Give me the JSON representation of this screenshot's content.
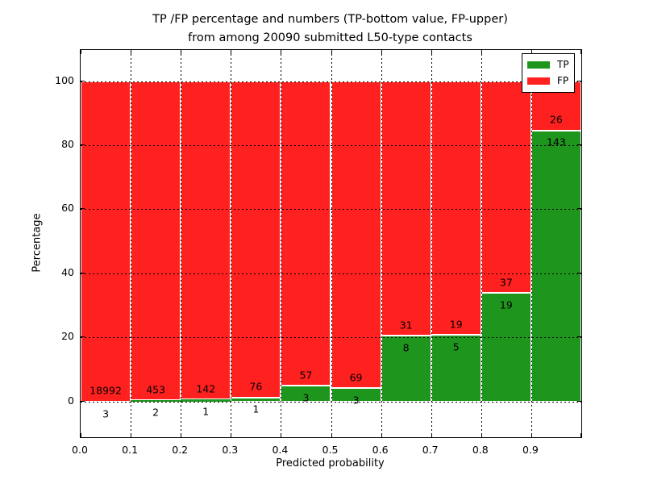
{
  "chart_data": {
    "type": "bar",
    "subtype": "stacked-percentage-histogram",
    "title_line1": "TP /FP percentage and numbers (TP-bottom value, FP-upper)",
    "title_line2": "from among 20090 submitted L50-type contacts",
    "submitted_total": 20090,
    "xlabel": "Predicted probability",
    "ylabel": "Percentage",
    "xlim": [
      0.0,
      1.0
    ],
    "ylim": [
      -11.1,
      109.7
    ],
    "xtick_values": [
      0.0,
      0.1,
      0.2,
      0.3,
      0.4,
      0.5,
      0.6,
      0.7,
      0.8,
      0.9
    ],
    "xtick_labels": [
      "0.0",
      "0.1",
      "0.2",
      "0.3",
      "0.4",
      "0.5",
      "0.6",
      "0.7",
      "0.8",
      "0.9"
    ],
    "ytick_values": [
      0,
      20,
      40,
      60,
      80,
      100
    ],
    "ytick_labels": [
      "0",
      "20",
      "40",
      "60",
      "80",
      "100"
    ],
    "grid": true,
    "bins": [
      {
        "x_start": 0.0,
        "x_end": 0.1,
        "tp": 3,
        "fp": 18992
      },
      {
        "x_start": 0.1,
        "x_end": 0.2,
        "tp": 2,
        "fp": 453
      },
      {
        "x_start": 0.2,
        "x_end": 0.3,
        "tp": 1,
        "fp": 142
      },
      {
        "x_start": 0.3,
        "x_end": 0.4,
        "tp": 1,
        "fp": 76
      },
      {
        "x_start": 0.4,
        "x_end": 0.5,
        "tp": 3,
        "fp": 57
      },
      {
        "x_start": 0.5,
        "x_end": 0.6,
        "tp": 3,
        "fp": 69
      },
      {
        "x_start": 0.6,
        "x_end": 0.7,
        "tp": 8,
        "fp": 31
      },
      {
        "x_start": 0.7,
        "x_end": 0.8,
        "tp": 5,
        "fp": 19
      },
      {
        "x_start": 0.8,
        "x_end": 0.9,
        "tp": 19,
        "fp": 37
      },
      {
        "x_start": 0.9,
        "x_end": 1.0,
        "tp": 143,
        "fp": 26
      }
    ],
    "colors": {
      "tp": "#1e961e",
      "fp": "#ff2020",
      "bar_edge": "#ffffff",
      "grid": "#000000"
    },
    "legend": {
      "position": "upper right",
      "entries": [
        {
          "label": "TP",
          "color": "#1e961e"
        },
        {
          "label": "FP",
          "color": "#ff2020"
        }
      ]
    }
  }
}
